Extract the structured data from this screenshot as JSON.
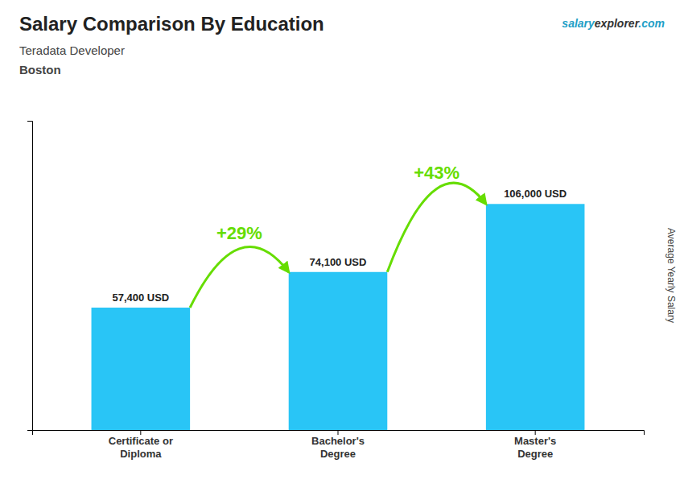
{
  "chart_data": {
    "type": "bar",
    "title": "Salary Comparison By Education",
    "subtitle": [
      "Teradata Developer",
      "Boston"
    ],
    "ylabel": "Average Yearly Salary",
    "categories": [
      "Certificate or\nDiploma",
      "Bachelor's\nDegree",
      "Master's\nDegree"
    ],
    "values": [
      57400,
      74100,
      106000
    ],
    "value_labels": [
      "57,400 USD",
      "74,100 USD",
      "106,000 USD"
    ],
    "data_labels": true,
    "color": "#29c5f6",
    "ylim": [
      0,
      145000
    ],
    "tick_labels": "x",
    "grid": false,
    "annotations": [
      {
        "text": "+29%",
        "color": "#66dd00"
      },
      {
        "text": "+43%",
        "color": "#66dd00"
      }
    ],
    "watermark": [
      "salary",
      "explorer",
      ".com"
    ]
  }
}
